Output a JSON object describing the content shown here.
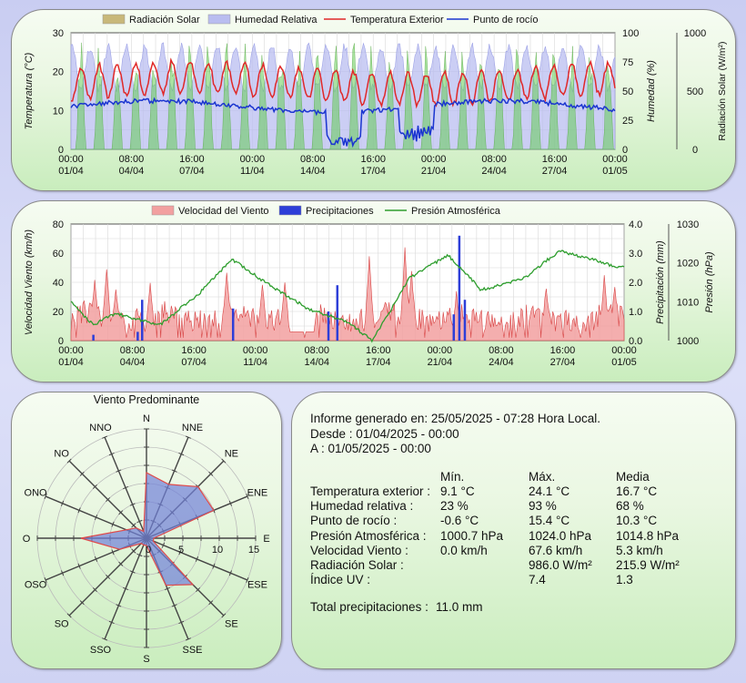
{
  "chart_data": [
    {
      "type": "area",
      "legend": [
        "Radiación Solar",
        "Humedad Relativa",
        "Temperatura Exterior",
        "Punto de rocío"
      ],
      "y_label_left": "Temperatura (°C)",
      "y_label_mid": "Humedad (%)",
      "y_label_right": "Radiación Solar (W/m²)",
      "y_ticks_left": [
        "30",
        "20",
        "10",
        "0"
      ],
      "y_ticks_mid": [
        "100",
        "75",
        "50",
        "25",
        "0"
      ],
      "y_ticks_right": [
        "1000",
        "500",
        "0"
      ],
      "x_ticks_time": [
        "00:00",
        "08:00",
        "16:00",
        "00:00",
        "08:00",
        "16:00",
        "00:00",
        "08:00",
        "16:00",
        "00:00"
      ],
      "x_ticks_date": [
        "01/04",
        "04/04",
        "07/04",
        "11/04",
        "14/04",
        "17/04",
        "21/04",
        "24/04",
        "27/04",
        "01/05"
      ],
      "temp_range": [
        0,
        30
      ],
      "hum_range": [
        0,
        100
      ],
      "rad_range": [
        0,
        1000
      ],
      "days": 30
    },
    {
      "type": "area",
      "legend": [
        "Velocidad del Viento",
        "Precipitaciones",
        "Presión Atmosférica"
      ],
      "y_label_left": "Velocidad Viento (km/h)",
      "y_label_mid": "Precipitación (mm)",
      "y_label_right": "Presión (hPa)",
      "y_ticks_left": [
        "80",
        "60",
        "40",
        "20",
        "0"
      ],
      "y_ticks_mid": [
        "4.0",
        "3.0",
        "2.0",
        "1.0",
        "0.0"
      ],
      "y_ticks_right": [
        "1030",
        "1020",
        "1010",
        "1000"
      ],
      "x_ticks_time": [
        "00:00",
        "08:00",
        "16:00",
        "00:00",
        "08:00",
        "16:00",
        "00:00",
        "08:00",
        "16:00",
        "00:00"
      ],
      "x_ticks_date": [
        "01/04",
        "04/04",
        "07/04",
        "11/04",
        "14/04",
        "17/04",
        "21/04",
        "24/04",
        "27/04",
        "01/05"
      ],
      "wind_range": [
        0,
        80
      ],
      "rain_range": [
        0,
        4
      ],
      "press_range": [
        1000,
        1030
      ]
    },
    {
      "type": "radar",
      "title": "Viento Predominante",
      "directions": [
        "N",
        "NNE",
        "NE",
        "ENE",
        "E",
        "ESE",
        "SE",
        "SSE",
        "S",
        "SSO",
        "SO",
        "OSO",
        "O",
        "ONO",
        "NO",
        "NNO"
      ],
      "values": [
        9,
        8,
        10,
        10,
        1,
        1,
        9,
        7,
        1,
        1,
        1,
        4,
        9,
        3,
        2,
        1
      ],
      "r_ticks": [
        "5",
        "10",
        "15"
      ],
      "r_max": 15
    }
  ],
  "report": {
    "generated": "Informe generado en: 25/05/2025 - 07:28 Hora Local.",
    "from": "Desde : 01/04/2025 - 00:00",
    "to": "A : 01/05/2025 - 00:00",
    "col_min": "Mín.",
    "col_max": "Máx.",
    "col_avg": "Media",
    "rows": [
      {
        "label": "Temperatura exterior :",
        "min": "9.1 °C",
        "max": "24.1 °C",
        "avg": "16.7 °C"
      },
      {
        "label": "Humedad relativa :",
        "min": "23 %",
        "max": "93 %",
        "avg": "68 %"
      },
      {
        "label": "Punto de rocío :",
        "min": "-0.6 °C",
        "max": "15.4 °C",
        "avg": "10.3 °C"
      },
      {
        "label": "Presión Atmosférica :",
        "min": "1000.7 hPa",
        "max": "1024.0 hPa",
        "avg": "1014.8 hPa"
      },
      {
        "label": "Velocidad Viento :",
        "min": "0.0 km/h",
        "max": "67.6 km/h",
        "avg": "5.3 km/h"
      },
      {
        "label": "Radiación Solar :",
        "min": "",
        "max": "986.0 W/m²",
        "avg": "215.9 W/m²"
      },
      {
        "label": "Índice UV :",
        "min": "",
        "max": "7.4",
        "avg": "1.3"
      }
    ],
    "total_label": "Total precipitaciones :",
    "total_value": "11.0 mm"
  },
  "colors": {
    "radiation_fill": "#c8b87a",
    "radiation_green": "#66cc55",
    "humidity_fill": "#b9bdf0",
    "temperature": "#e02828",
    "dewpoint": "#1a35d0",
    "wind_fill": "#f2a0a0",
    "wind_line": "#d84444",
    "rain": "#2d3ed8",
    "pressure": "#2e9e2e"
  }
}
